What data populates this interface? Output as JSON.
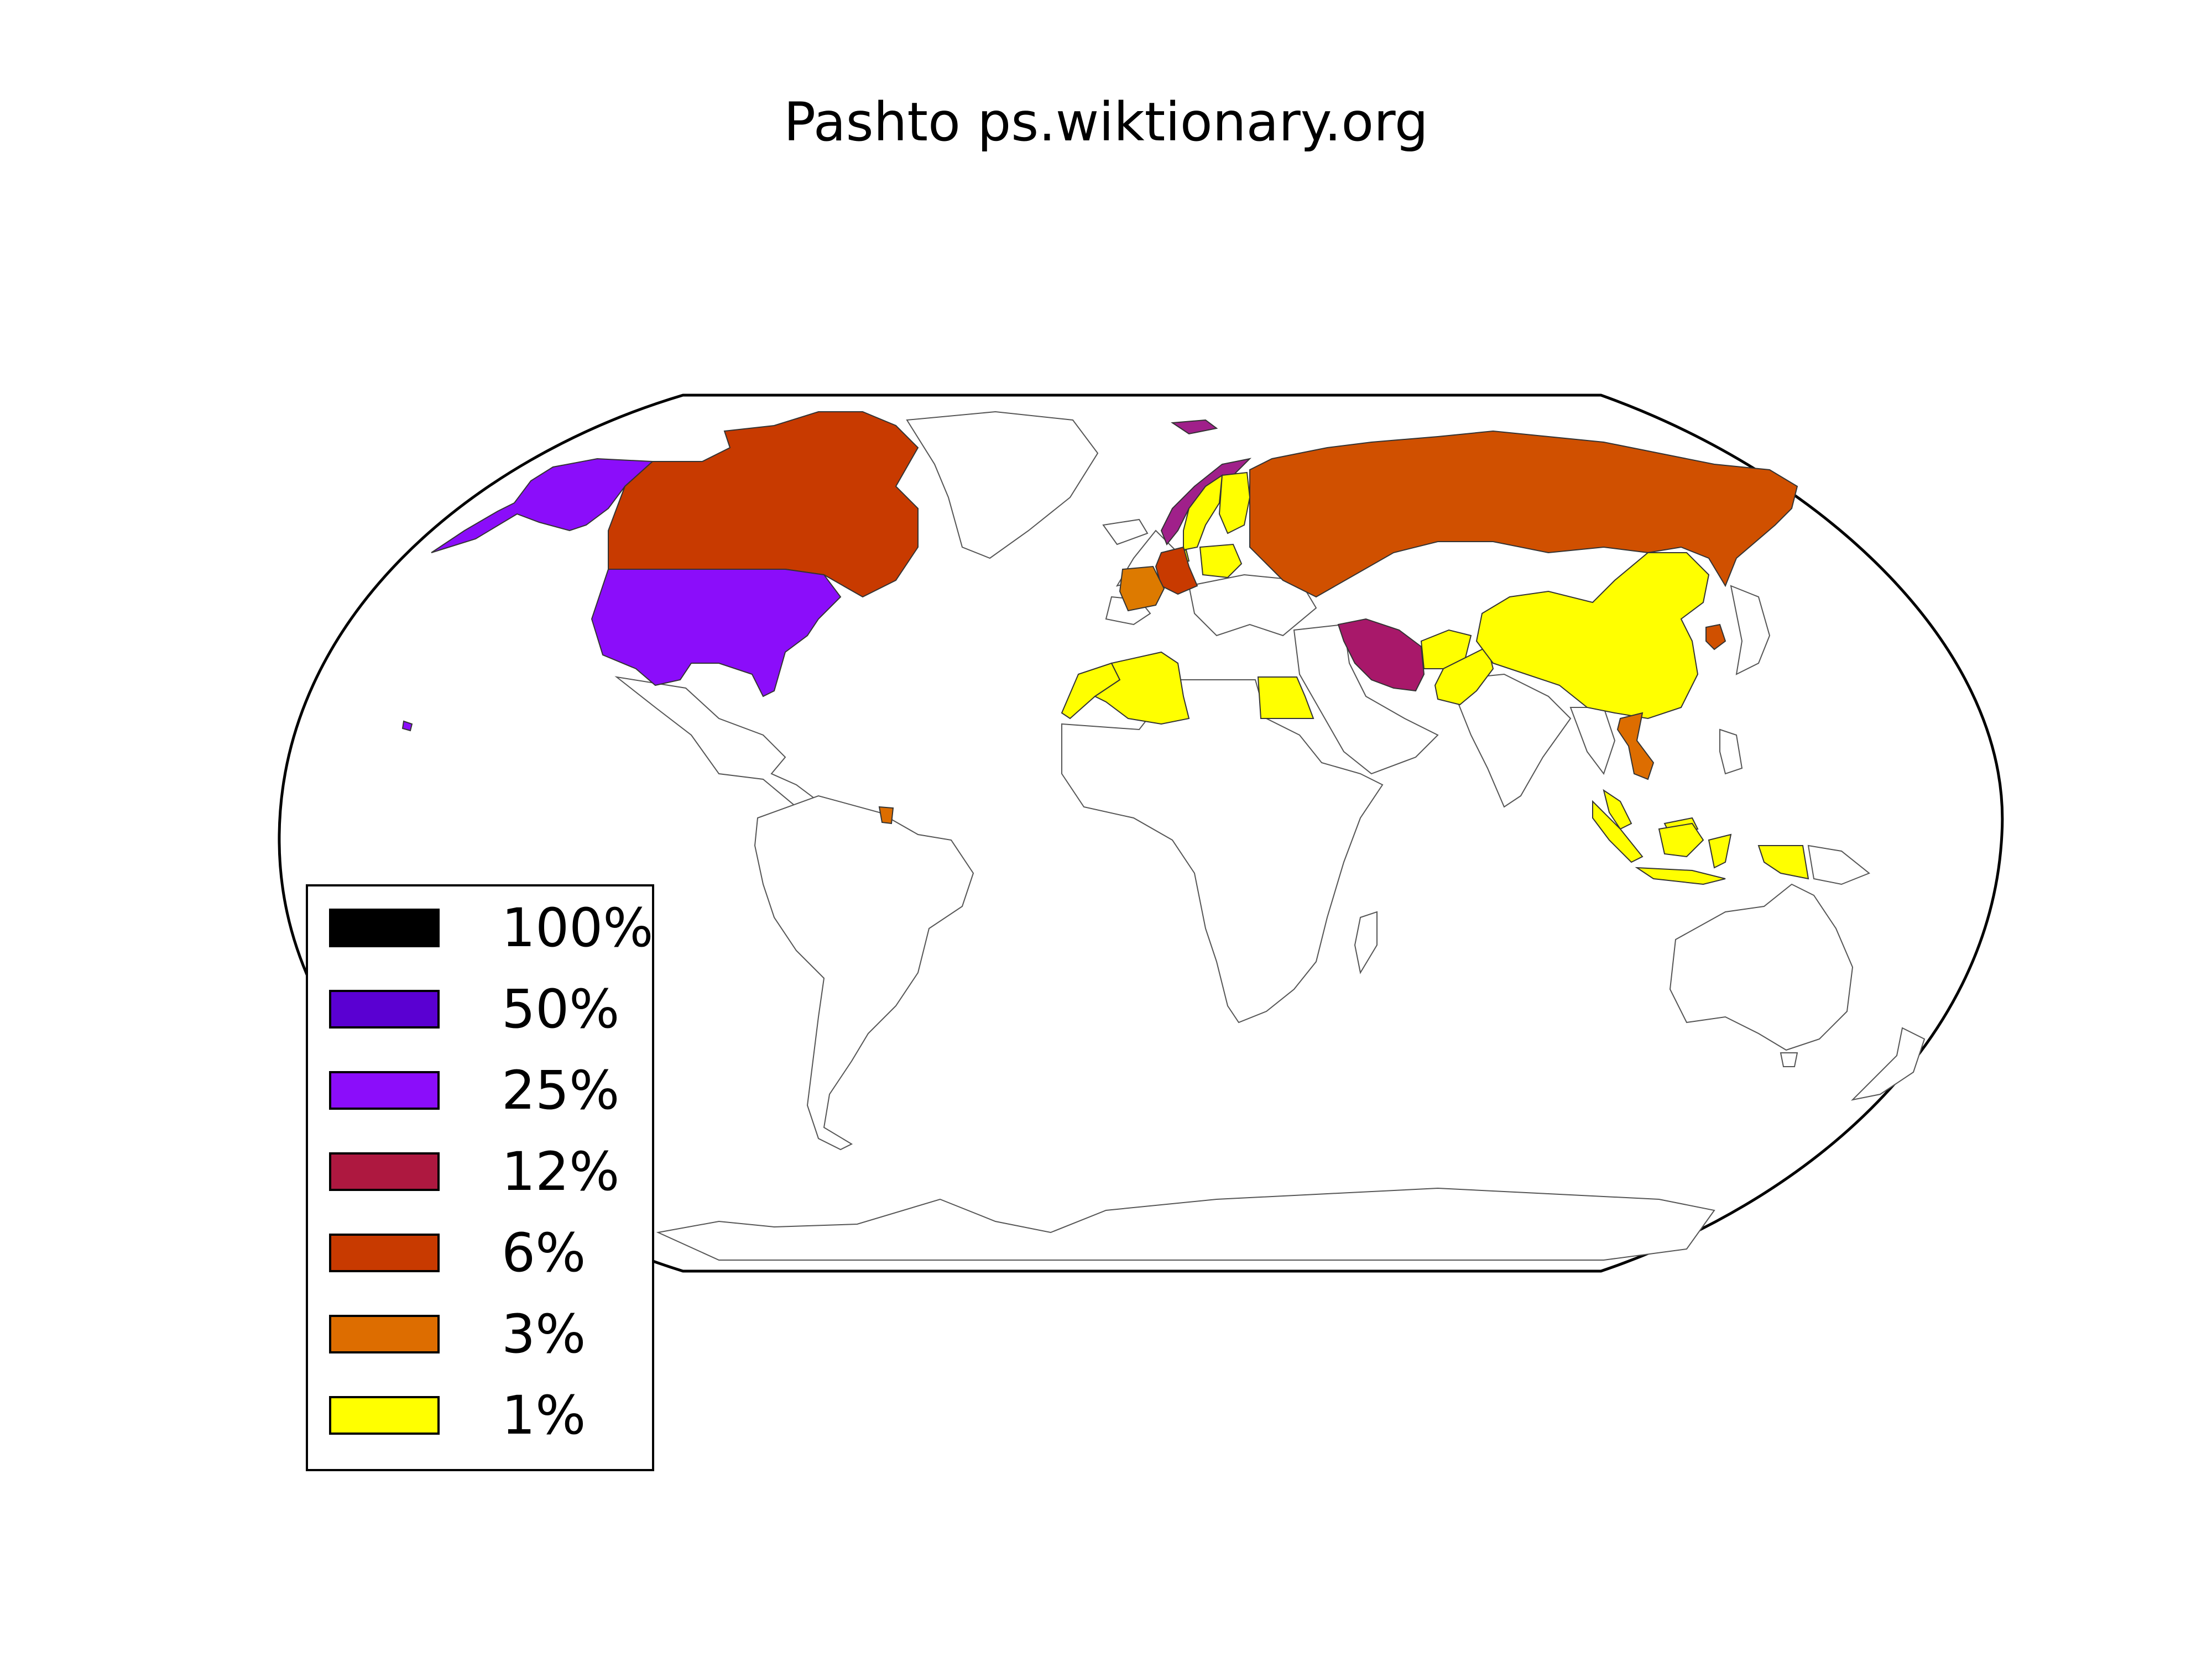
{
  "title": "Pashto ps.wiktionary.org",
  "legend": {
    "items": [
      {
        "label": "100%",
        "color": "#000000"
      },
      {
        "label": "50%",
        "color": "#5a00d2"
      },
      {
        "label": "25%",
        "color": "#8b0dfa"
      },
      {
        "label": "12%",
        "color": "#ae1840"
      },
      {
        "label": "6%",
        "color": "#c83a00"
      },
      {
        "label": "3%",
        "color": "#dd6d00"
      },
      {
        "label": "1%",
        "color": "#ffff00"
      }
    ]
  },
  "regions": [
    {
      "name": "alaska",
      "color": "#8b0dfa"
    },
    {
      "name": "usa",
      "color": "#8b0dfa"
    },
    {
      "name": "hawaii",
      "color": "#8b0dfa"
    },
    {
      "name": "canada",
      "color": "#c83a00"
    },
    {
      "name": "russia",
      "color": "#d05000"
    },
    {
      "name": "norway",
      "color": "#a0208a"
    },
    {
      "name": "svalbard",
      "color": "#a0208a"
    },
    {
      "name": "sweden",
      "color": "#ffff00"
    },
    {
      "name": "finland",
      "color": "#ffff00"
    },
    {
      "name": "germany",
      "color": "#c83a00"
    },
    {
      "name": "poland",
      "color": "#ffff00"
    },
    {
      "name": "netherlands",
      "color": "#ffff00"
    },
    {
      "name": "france",
      "color": "#dd7a00"
    },
    {
      "name": "algeria",
      "color": "#ffff00"
    },
    {
      "name": "morocco",
      "color": "#ffff00"
    },
    {
      "name": "egypt",
      "color": "#ffff00"
    },
    {
      "name": "iran",
      "color": "#a8186a"
    },
    {
      "name": "afghanistan",
      "color": "#ffff00"
    },
    {
      "name": "pakistan",
      "color": "#ffff00"
    },
    {
      "name": "china",
      "color": "#ffff00"
    },
    {
      "name": "south-korea",
      "color": "#d05000"
    },
    {
      "name": "vietnam",
      "color": "#dd6d00"
    },
    {
      "name": "indonesia",
      "color": "#ffff00"
    },
    {
      "name": "malaysia",
      "color": "#ffff00"
    },
    {
      "name": "french-guiana",
      "color": "#dd6d00"
    }
  ]
}
